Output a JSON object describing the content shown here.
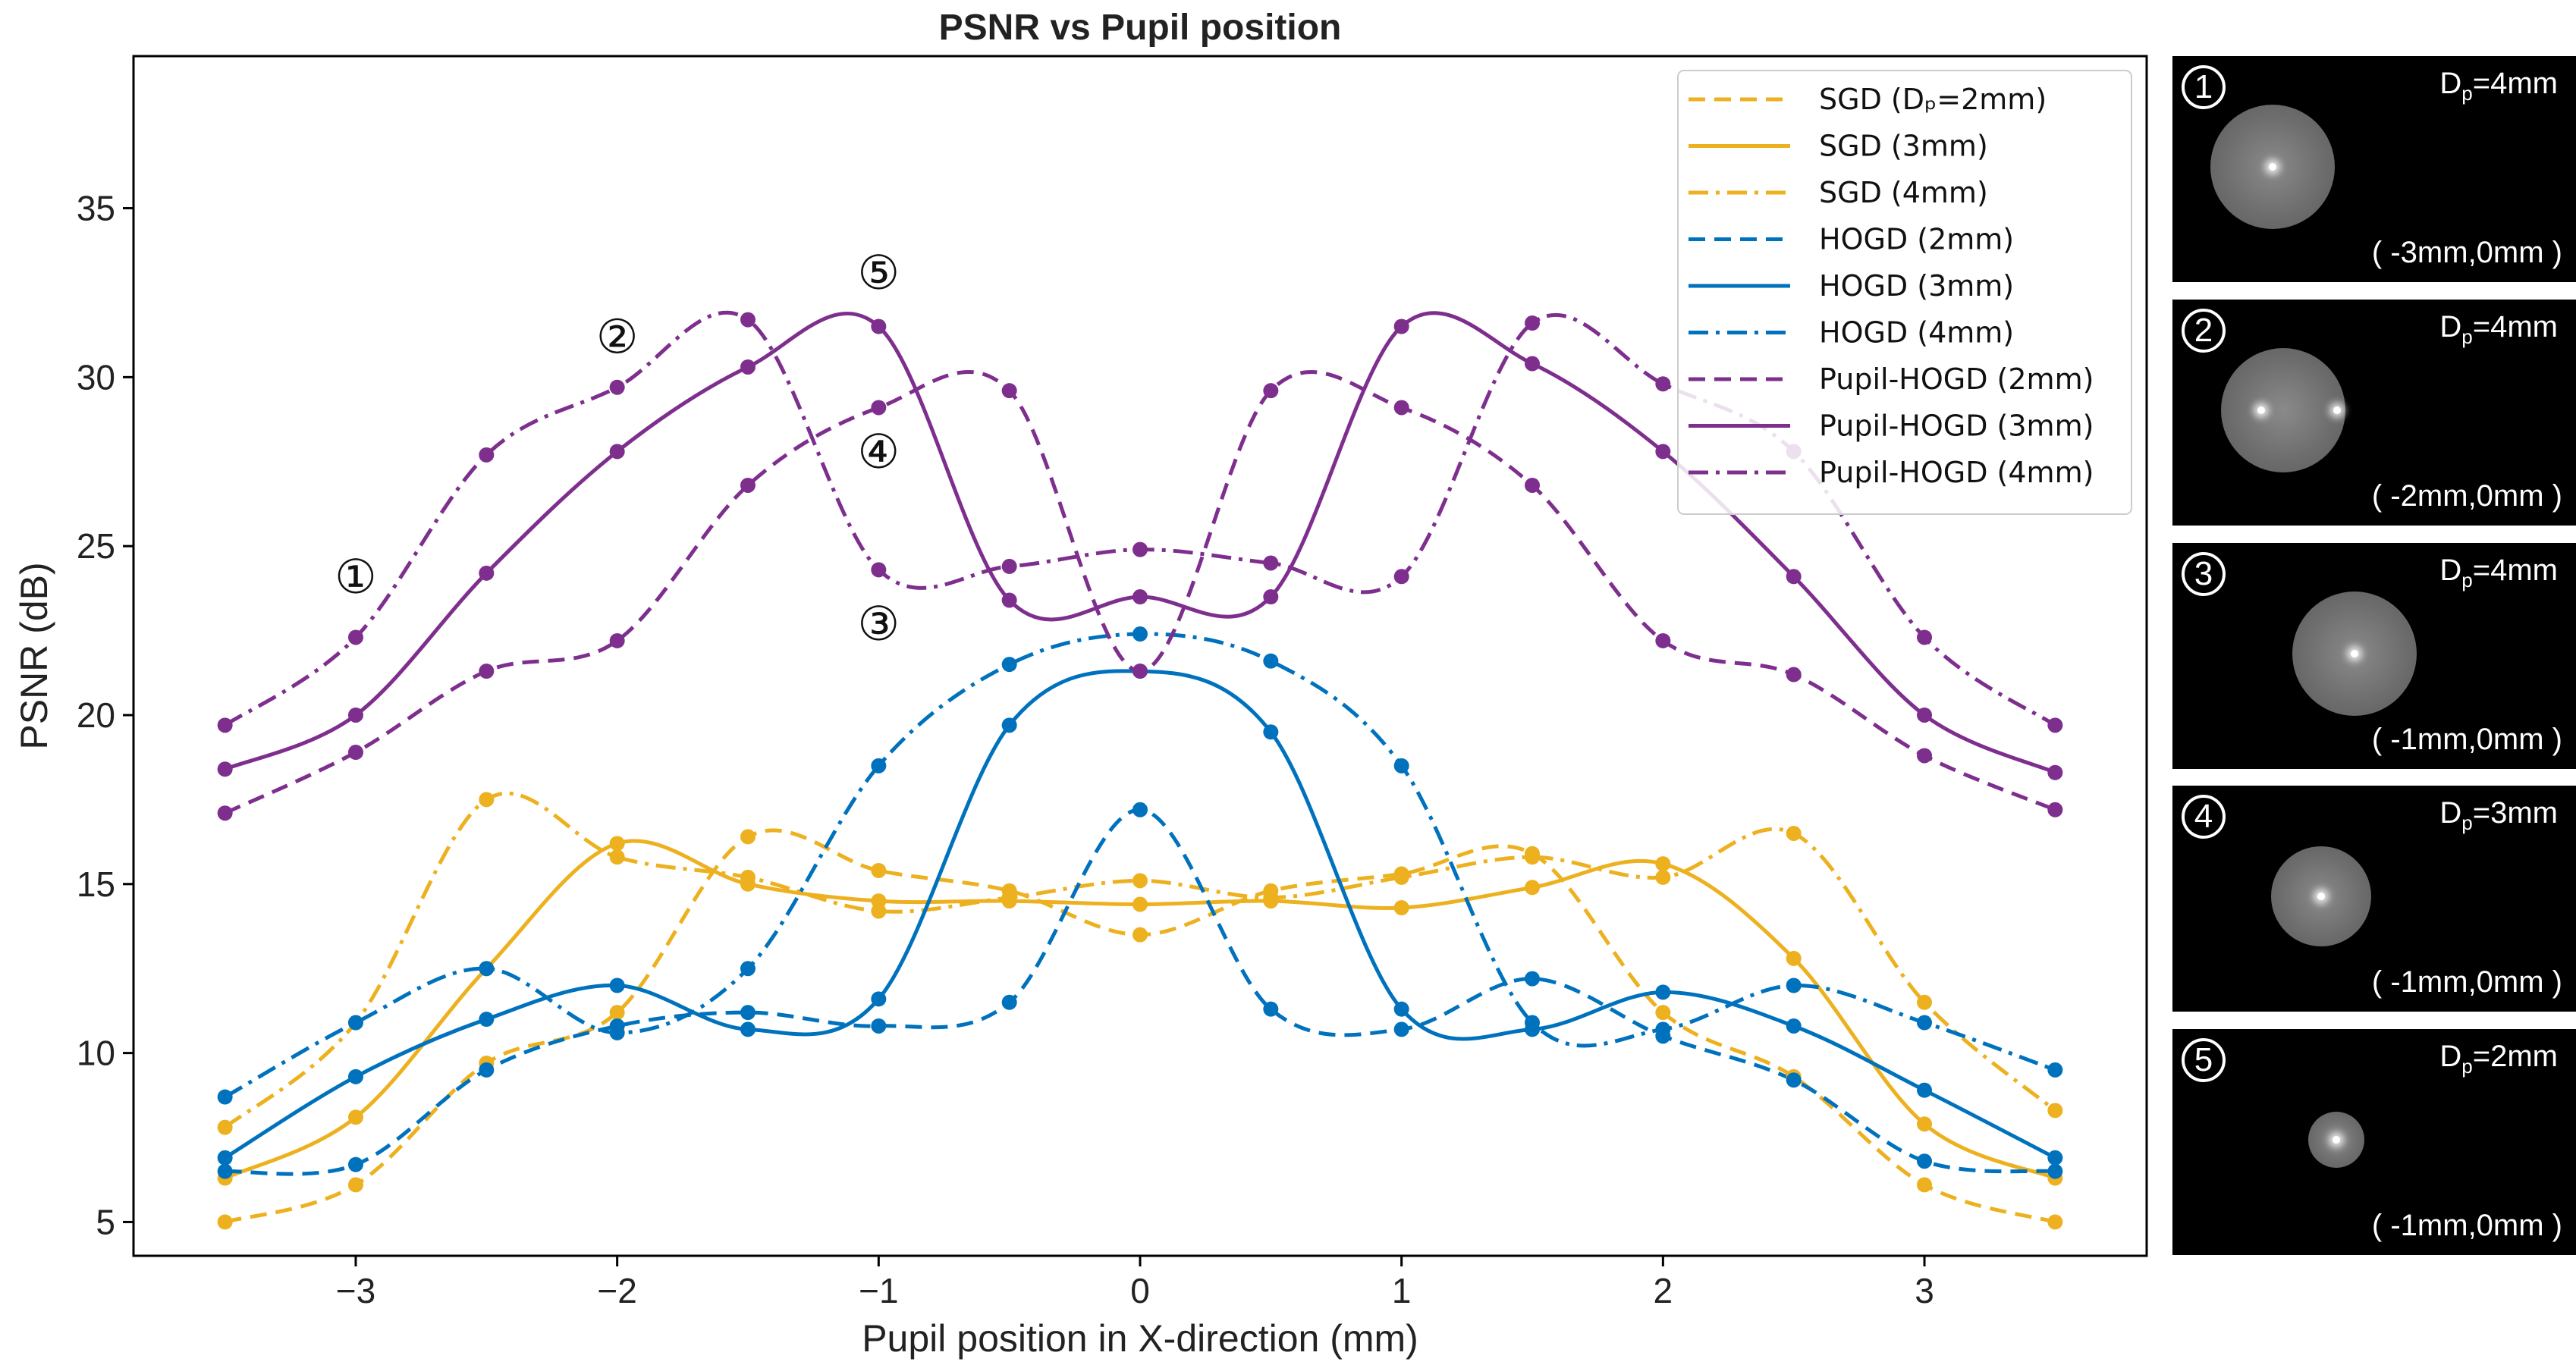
{
  "chart_data": {
    "type": "line",
    "title": "PSNR vs Pupil position",
    "xlabel": "Pupil position in X-direction (mm)",
    "ylabel": "PSNR (dB)",
    "xlim": [
      -3.85,
      3.85
    ],
    "ylim": [
      4.0,
      39.5
    ],
    "x_ticks": [
      -3,
      -2,
      -1,
      0,
      1,
      2,
      3
    ],
    "x_tick_labels": [
      "−3",
      "−2",
      "−1",
      "0",
      "1",
      "2",
      "3"
    ],
    "y_ticks": [
      5,
      10,
      15,
      20,
      25,
      30,
      35
    ],
    "x": [
      -3.5,
      -3.0,
      -2.5,
      -2.0,
      -1.5,
      -1.0,
      -0.5,
      0.0,
      0.5,
      1.0,
      1.5,
      2.0,
      2.5,
      3.0,
      3.5
    ],
    "legend_position": "top-right",
    "series": [
      {
        "name": "SGD (Dₚ=2mm)",
        "color": "#EDB120",
        "dash": "dashed",
        "values": [
          5.0,
          6.1,
          9.7,
          11.2,
          16.4,
          15.4,
          14.8,
          13.5,
          14.8,
          15.3,
          15.9,
          11.2,
          9.3,
          6.1,
          5.0
        ]
      },
      {
        "name": "SGD (3mm)",
        "color": "#EDB120",
        "dash": "solid",
        "values": [
          6.3,
          8.1,
          12.5,
          16.2,
          15.0,
          14.5,
          14.5,
          14.4,
          14.5,
          14.3,
          14.9,
          15.6,
          12.8,
          7.9,
          6.3
        ]
      },
      {
        "name": "SGD (4mm)",
        "color": "#EDB120",
        "dash": "dashdot",
        "values": [
          7.8,
          10.9,
          17.5,
          15.8,
          15.2,
          14.2,
          14.6,
          15.1,
          14.6,
          15.2,
          15.8,
          15.2,
          16.5,
          11.5,
          8.3
        ]
      },
      {
        "name": "HOGD (2mm)",
        "color": "#0072BD",
        "dash": "dashed",
        "values": [
          6.5,
          6.7,
          9.5,
          10.8,
          11.2,
          10.8,
          11.5,
          17.2,
          11.3,
          10.7,
          12.2,
          10.5,
          9.2,
          6.8,
          6.5
        ]
      },
      {
        "name": "HOGD (3mm)",
        "color": "#0072BD",
        "dash": "solid",
        "values": [
          6.9,
          9.3,
          11.0,
          12.0,
          10.7,
          11.6,
          19.7,
          21.3,
          19.5,
          11.3,
          10.7,
          11.8,
          10.8,
          8.9,
          6.9
        ]
      },
      {
        "name": "HOGD (4mm)",
        "color": "#0072BD",
        "dash": "dashdot",
        "values": [
          8.7,
          10.9,
          12.5,
          10.6,
          12.5,
          18.5,
          21.5,
          22.4,
          21.6,
          18.5,
          10.9,
          10.7,
          12.0,
          10.9,
          9.5
        ]
      },
      {
        "name": "Pupil-HOGD (2mm)",
        "color": "#7E2F8E",
        "dash": "dashed",
        "values": [
          17.1,
          18.9,
          21.3,
          22.2,
          26.8,
          29.1,
          29.6,
          21.3,
          29.6,
          29.1,
          26.8,
          22.2,
          21.2,
          18.8,
          17.2
        ]
      },
      {
        "name": "Pupil-HOGD (3mm)",
        "color": "#7E2F8E",
        "dash": "solid",
        "values": [
          18.4,
          20.0,
          24.2,
          27.8,
          30.3,
          31.5,
          23.4,
          23.5,
          23.5,
          31.5,
          30.4,
          27.8,
          24.1,
          20.0,
          18.3
        ]
      },
      {
        "name": "Pupil-HOGD (4mm)",
        "color": "#7E2F8E",
        "dash": "dashdot",
        "values": [
          19.7,
          22.3,
          27.7,
          29.7,
          31.7,
          24.3,
          24.4,
          24.9,
          24.5,
          24.1,
          31.6,
          29.8,
          27.8,
          22.3,
          19.7
        ]
      }
    ],
    "annotations": [
      {
        "label": "①",
        "x": -3.0,
        "y": 24.0
      },
      {
        "label": "②",
        "x": -2.0,
        "y": 31.1
      },
      {
        "label": "③",
        "x": -1.0,
        "y": 22.6
      },
      {
        "label": "④",
        "x": -1.0,
        "y": 27.7
      },
      {
        "label": "⑤",
        "x": -1.0,
        "y": 33.0
      }
    ]
  },
  "side_panels": [
    {
      "number": "1",
      "dp_prefix": "D",
      "dp_sub": "p",
      "dp_value": "=4mm",
      "position": "( -3mm,0mm )"
    },
    {
      "number": "2",
      "dp_prefix": "D",
      "dp_sub": "p",
      "dp_value": "=4mm",
      "position": "( -2mm,0mm )"
    },
    {
      "number": "3",
      "dp_prefix": "D",
      "dp_sub": "p",
      "dp_value": "=4mm",
      "position": "( -1mm,0mm )"
    },
    {
      "number": "4",
      "dp_prefix": "D",
      "dp_sub": "p",
      "dp_value": "=3mm",
      "position": "( -1mm,0mm )"
    },
    {
      "number": "5",
      "dp_prefix": "D",
      "dp_sub": "p",
      "dp_value": "=2mm",
      "position": "( -1mm,0mm )"
    }
  ]
}
